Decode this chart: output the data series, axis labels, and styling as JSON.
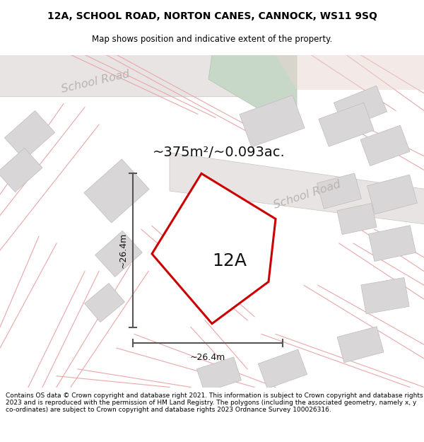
{
  "title_line1": "12A, SCHOOL ROAD, NORTON CANES, CANNOCK, WS11 9SQ",
  "title_line2": "Map shows position and indicative extent of the property.",
  "area_text": "~375m²/~0.093ac.",
  "label_12A": "12A",
  "dim_vertical": "~26.4m",
  "dim_horizontal": "~26.4m",
  "road_label1": "School Road",
  "road_label2": "School Road",
  "footer_text": "Contains OS data © Crown copyright and database right 2021. This information is subject to Crown copyright and database rights 2023 and is reproduced with the permission of HM Land Registry. The polygons (including the associated geometry, namely x, y co-ordinates) are subject to Crown copyright and database rights 2023 Ordnance Survey 100026316.",
  "bg_color": "#f2f0f0",
  "map_bg": "#f2f0f0",
  "plot_fill": "#ffffff",
  "plot_stroke": "#cc0000",
  "road_band_color": "#e8e4e4",
  "road_lines_color": "#e8a8a8",
  "building_fill": "#d8d6d6",
  "building_edge": "#c0bcbc",
  "dim_line_color": "#555555",
  "green_fill": "#d0ddd0",
  "pink_fill": "#e8d0d0",
  "road_label_color": "#b8b4b4",
  "title_fontsize": 10,
  "subtitle_fontsize": 8.5,
  "area_fontsize": 14,
  "label_fontsize": 18,
  "dim_fontsize": 9,
  "footer_fontsize": 6.5
}
